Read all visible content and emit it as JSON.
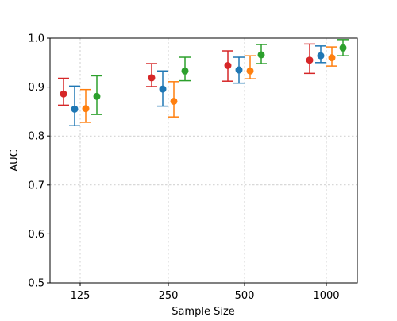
{
  "chart_data": {
    "type": "scatter",
    "title": "",
    "xlabel": "Sample Size",
    "ylabel": "AUC",
    "categories": [
      "125",
      "250",
      "500",
      "1000"
    ],
    "ylim": [
      0.5,
      1.0
    ],
    "yticks": [
      "0.5",
      "0.6",
      "0.7",
      "0.8",
      "0.9",
      "1.0"
    ],
    "grid": true,
    "legend": "none",
    "series": [
      {
        "color": "#d62728",
        "values": [
          0.886,
          0.919,
          0.944,
          0.955
        ],
        "lower": [
          0.863,
          0.901,
          0.912,
          0.928
        ],
        "upper": [
          0.918,
          0.948,
          0.974,
          0.988
        ]
      },
      {
        "color": "#1f77b4",
        "values": [
          0.855,
          0.896,
          0.935,
          0.964
        ],
        "lower": [
          0.821,
          0.861,
          0.908,
          0.95
        ],
        "upper": [
          0.902,
          0.933,
          0.961,
          0.984
        ]
      },
      {
        "color": "#ff7f0e",
        "values": [
          0.856,
          0.871,
          0.933,
          0.96
        ],
        "lower": [
          0.828,
          0.839,
          0.917,
          0.943
        ],
        "upper": [
          0.895,
          0.911,
          0.964,
          0.982
        ]
      },
      {
        "color": "#2ca02c",
        "values": [
          0.881,
          0.933,
          0.966,
          0.98
        ],
        "lower": [
          0.844,
          0.913,
          0.948,
          0.964
        ],
        "upper": [
          0.923,
          0.961,
          0.987,
          0.997
        ]
      }
    ]
  }
}
